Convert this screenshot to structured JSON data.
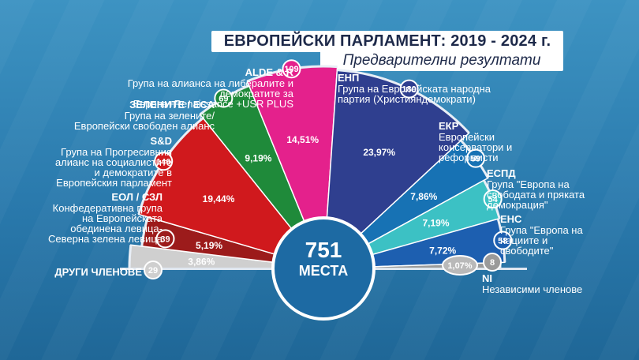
{
  "header": {
    "title": "ЕВРОПЕЙСКИ ПАРЛАМЕНТ: 2019 - 2024 г.",
    "subtitle": "Предварителни резултати"
  },
  "center": {
    "seats": "751",
    "label": "МЕСТА"
  },
  "chart_data": {
    "type": "pie",
    "variant": "hemicycle",
    "title": "ЕВРОПЕЙСКИ ПАРЛАМЕНТ: 2019 - 2024 г.",
    "subtitle": "Предварителни резултати",
    "total_seats": 751,
    "groups": [
      {
        "abbr": "ДРУГИ ЧЛЕНОВЕ",
        "name": "",
        "seats": 29,
        "seats_label": "29",
        "percent_label": "3,86%",
        "color": "#cfcfcf"
      },
      {
        "abbr": "ЕОЛ / СЗЛ",
        "name": "Конфедеративна група на Европейската обединена левица-Северна зелена левица",
        "seats": 39,
        "seats_label": "39",
        "percent_label": "5,19%",
        "color": "#9c1b1b"
      },
      {
        "abbr": "S&D",
        "name": "Група на Прогресивния алианс на социалистите и демократите в Европейския парламент",
        "seats": 146,
        "seats_label": "146",
        "percent_label": "19,44%",
        "color": "#d0191d"
      },
      {
        "abbr": "ЗЕЛЕНИТЕ / ЕСА",
        "name": "Група на зелените/ Европейски свободен алианс",
        "seats": 69,
        "seats_label": "69",
        "percent_label": "9,19%",
        "color": "#1f8a3a"
      },
      {
        "abbr": "ALDE & R",
        "name": "Група на алианса на либералите и демократите за Европа+Renaissance +USR PLUS",
        "seats": 109,
        "seats_label": "109",
        "percent_label": "14,51%",
        "color": "#e4218c"
      },
      {
        "abbr": "ЕНП",
        "name": "Група на Европейската народна партия (Християндемократи)",
        "seats": 180,
        "seats_label": "180",
        "percent_label": "23,97%",
        "color": "#2f3f8f"
      },
      {
        "abbr": "ЕКР",
        "name": "Европейски консерватори и реформисти",
        "seats": 59,
        "seats_label": "59",
        "percent_label": "7,86%",
        "color": "#1772b4"
      },
      {
        "abbr": "ЕСПД",
        "name": "Група \"Европа на свободата и пряката демокрация\"",
        "seats": 54,
        "seats_label": "54",
        "percent_label": "7,19%",
        "color": "#3cc1c4"
      },
      {
        "abbr": "ЕНС",
        "name": "Група \"Европа на нациите и свободите\"",
        "seats": 58,
        "seats_label": "58",
        "percent_label": "7,72%",
        "color": "#1d5fb0"
      },
      {
        "abbr": "NI",
        "name": "Независими членове",
        "seats": 8,
        "seats_label": "8",
        "percent_label": "1,07%",
        "color": "#9a9a9a"
      }
    ]
  }
}
